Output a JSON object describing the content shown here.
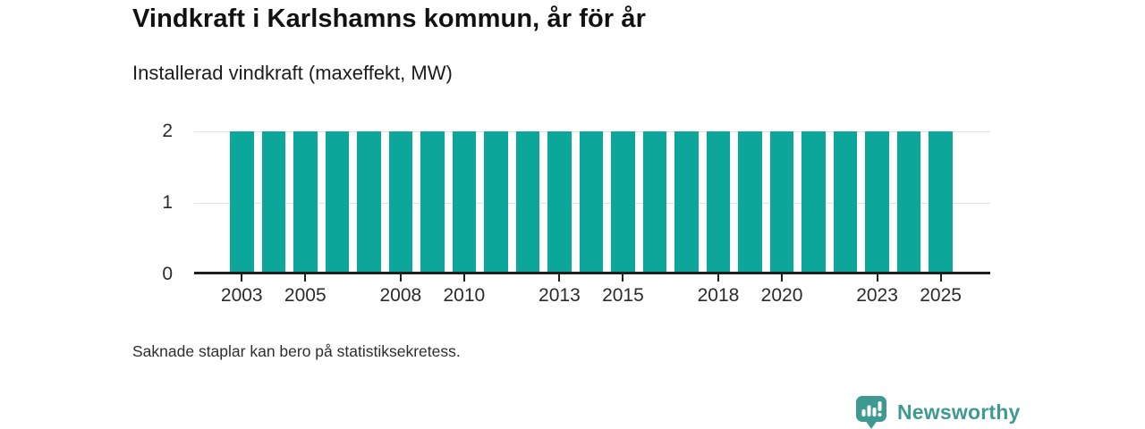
{
  "header": {
    "title": "Vindkraft i Karlshamns kommun, år för år",
    "subtitle": "Installerad vindkraft (maxeffekt, MW)"
  },
  "chart_data": {
    "type": "bar",
    "title": "Vindkraft i Karlshamns kommun, år för år",
    "ylabel": "Installerad vindkraft (maxeffekt, MW)",
    "x": [
      2003,
      2004,
      2005,
      2006,
      2007,
      2008,
      2009,
      2010,
      2011,
      2012,
      2013,
      2014,
      2015,
      2016,
      2017,
      2018,
      2019,
      2020,
      2021,
      2022,
      2023,
      2024,
      2025
    ],
    "values": [
      2,
      2,
      2,
      2,
      2,
      2,
      2,
      2,
      2,
      2,
      2,
      2,
      2,
      2,
      2,
      2,
      2,
      2,
      2,
      2,
      2,
      2,
      2
    ],
    "ylim": [
      0,
      2
    ],
    "yticks": [
      0,
      1,
      2
    ],
    "xtick_labels": [
      "2003",
      "2005",
      "2008",
      "2010",
      "2013",
      "2015",
      "2018",
      "2020",
      "2023",
      "2025"
    ],
    "grid": "horizontal",
    "legend_position": "none",
    "bar_color": "#0ca69a"
  },
  "footer": {
    "note": "Saknade staplar kan bero på statistiksekretess."
  },
  "branding": {
    "logo_text": "Newsworthy",
    "logo_color": "#3e9a91",
    "logo_icon": "bar-chart-speech-bubble-icon"
  }
}
